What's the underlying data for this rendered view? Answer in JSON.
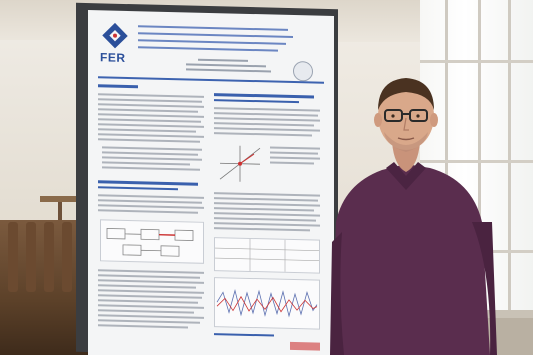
{
  "scene": {
    "description_free": true,
    "colors": {
      "wall": "#ece7de",
      "board_frame": "#3b3d40",
      "poster_bg": "#f4f5f6",
      "poster_accent": "#3a60ad",
      "shirt": "#5a2d4e",
      "skin": "#d9a88a",
      "hair": "#4a3221",
      "chairs": "#6b4a30"
    }
  },
  "poster": {
    "logo_text": "FER"
  }
}
